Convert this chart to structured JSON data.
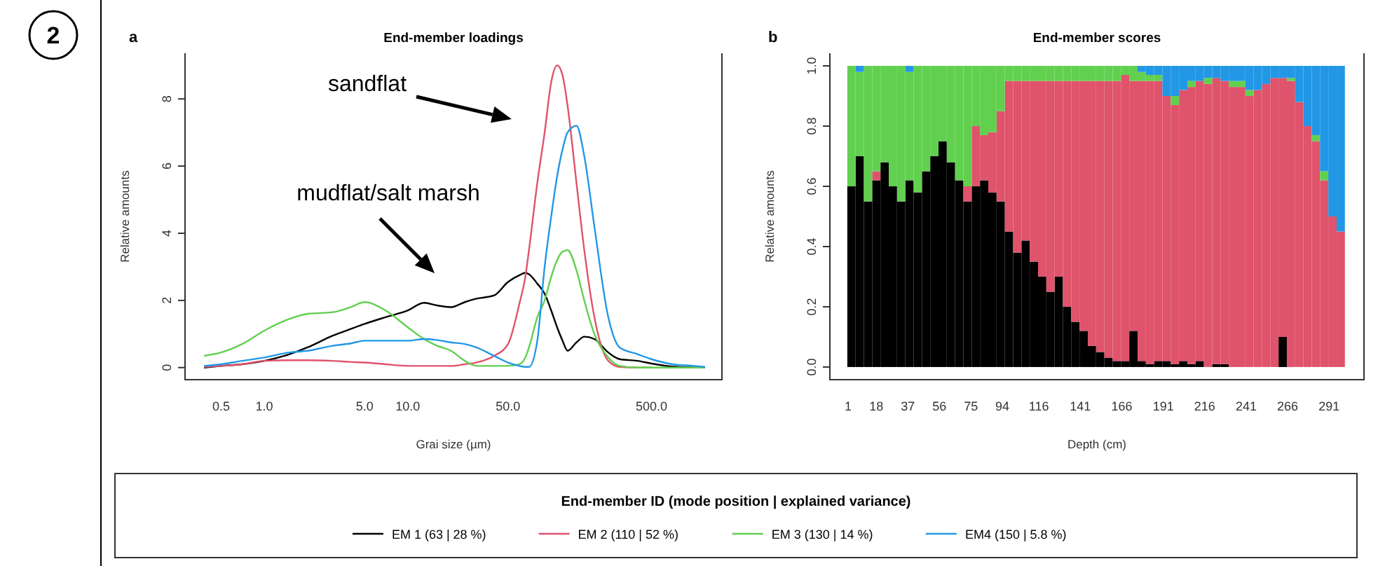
{
  "chart_data": [
    {
      "type": "line",
      "title": "End-member loadings",
      "xlabel": "Grai size (µm)",
      "ylabel": "Relative amounts",
      "log": "x",
      "legend": "bottom",
      "legend_title": "End-member ID (mode position | explained variance)",
      "x": [
        0.38,
        0.5,
        0.7,
        1,
        1.5,
        2,
        3,
        4,
        5,
        7,
        10,
        13,
        16,
        20,
        25,
        30,
        40,
        50,
        60,
        66,
        70,
        80,
        90,
        100,
        110,
        120,
        130,
        150,
        170,
        200,
        250,
        300,
        400,
        500,
        700,
        1000,
        1180
      ],
      "xlim": [
        0.28,
        1550
      ],
      "xticks": [
        0.5,
        {
          "value": 1,
          "label": "1.0"
        },
        {
          "value": 5,
          "label": "5.0"
        },
        {
          "value": 10,
          "label": "10.0"
        },
        {
          "value": 50,
          "label": "50.0"
        },
        {
          "value": 500,
          "label": "500.0"
        }
      ],
      "ylim": [
        -0.36,
        9.36
      ],
      "yticks": [
        0,
        2,
        4,
        6,
        8
      ],
      "series": [
        {
          "name": "EM 1 (63 | 28 %)",
          "color": "#000000",
          "values": [
            0,
            0.05,
            0.1,
            0.2,
            0.4,
            0.6,
            0.95,
            1.15,
            1.3,
            1.5,
            1.7,
            1.93,
            1.85,
            1.8,
            1.95,
            2.05,
            2.15,
            2.55,
            2.75,
            2.82,
            2.78,
            2.5,
            2.2,
            1.7,
            1.2,
            0.8,
            0.5,
            0.75,
            0.92,
            0.85,
            0.45,
            0.25,
            0.2,
            0.12,
            0.03,
            0,
            0
          ]
        },
        {
          "name": "EM 2 (110 | 52 %)",
          "color": "#df536b",
          "values": [
            0.02,
            0.05,
            0.1,
            0.2,
            0.22,
            0.22,
            0.2,
            0.17,
            0.15,
            0.1,
            0.05,
            0.05,
            0.05,
            0.05,
            0.1,
            0.15,
            0.35,
            0.7,
            1.9,
            2.7,
            3.5,
            5.5,
            7.0,
            8.5,
            9.0,
            8.7,
            7.8,
            5.5,
            3.5,
            1.5,
            0.2,
            0.02,
            0,
            0,
            null,
            null,
            null
          ]
        },
        {
          "name": "EM 3 (130 | 14 %)",
          "color": "#61d04f",
          "values": [
            0.35,
            0.45,
            0.7,
            1.1,
            1.45,
            1.6,
            1.65,
            1.8,
            1.95,
            1.7,
            1.2,
            0.85,
            0.65,
            0.5,
            0.2,
            0.05,
            0.05,
            0.05,
            0.1,
            0.3,
            0.6,
            1.5,
            2.0,
            2.7,
            3.2,
            3.45,
            3.5,
            2.9,
            2.0,
            1.0,
            0.3,
            0.05,
            0,
            0,
            0,
            0,
            0
          ]
        },
        {
          "name": "EM4 (150 | 5.8 %)",
          "color": "#2297e6",
          "values": [
            0.05,
            0.1,
            0.2,
            0.3,
            0.45,
            0.5,
            0.65,
            0.72,
            0.8,
            0.8,
            0.8,
            0.85,
            0.82,
            0.75,
            0.7,
            0.6,
            0.35,
            0.15,
            0.05,
            0.02,
            0.02,
            0.8,
            3.0,
            4.5,
            5.7,
            6.5,
            7.0,
            7.2,
            6.3,
            4.2,
            1.5,
            0.6,
            0.4,
            0.25,
            0.1,
            0.05,
            0.02
          ]
        }
      ],
      "annotations": [
        "2",
        "a",
        "sandflat",
        "mudflat/salt marsh"
      ]
    },
    {
      "type": "bar",
      "stacked": true,
      "title": "End-member scores",
      "xlabel": "Depth (cm)",
      "ylabel": "Relative amounts",
      "x": [
        3,
        8,
        13,
        18,
        23,
        28,
        33,
        38,
        43,
        48,
        53,
        58,
        63,
        68,
        73,
        78,
        83,
        88,
        93,
        98,
        103,
        108,
        113,
        118,
        123,
        128,
        133,
        138,
        143,
        148,
        153,
        158,
        163,
        168,
        173,
        178,
        183,
        188,
        193,
        198,
        203,
        208,
        213,
        218,
        223,
        228,
        233,
        238,
        243,
        248,
        253,
        258,
        263,
        268,
        273,
        278,
        283,
        288,
        293,
        298
      ],
      "xlim": [
        -10,
        312
      ],
      "xticks": [
        1,
        18,
        37,
        56,
        75,
        94,
        116,
        141,
        166,
        191,
        216,
        241,
        266,
        291
      ],
      "ylim": [
        -0.042,
        1.042
      ],
      "yticks": [
        {
          "value": 0,
          "label": "0.0"
        },
        {
          "value": 0.2,
          "label": "0.2"
        },
        {
          "value": 0.4,
          "label": "0.4"
        },
        {
          "value": 0.6,
          "label": "0.6"
        },
        {
          "value": 0.8,
          "label": "0.8"
        },
        {
          "value": 1,
          "label": "1.0"
        }
      ],
      "series": [
        {
          "color": "#000000",
          "values": [
            0.6,
            0.7,
            0.55,
            0.62,
            0.68,
            0.6,
            0.55,
            0.62,
            0.58,
            0.65,
            0.7,
            0.75,
            0.68,
            0.62,
            0.55,
            0.6,
            0.62,
            0.58,
            0.55,
            0.45,
            0.38,
            0.42,
            0.35,
            0.3,
            0.25,
            0.3,
            0.2,
            0.15,
            0.12,
            0.07,
            0.05,
            0.03,
            0.02,
            0.02,
            0.12,
            0.02,
            0.01,
            0.02,
            0.02,
            0.01,
            0.02,
            0.01,
            0.02,
            0,
            0.01,
            0.01,
            0,
            0,
            0,
            0,
            0,
            0,
            0.1,
            0,
            0,
            0,
            0,
            0,
            0,
            0
          ]
        },
        {
          "color": "#df536b",
          "values": [
            0,
            0,
            0,
            0.03,
            0,
            0,
            0,
            0,
            0,
            0,
            0,
            0,
            0,
            0,
            0.05,
            0.2,
            0.15,
            0.2,
            0.3,
            0.5,
            0.57,
            0.53,
            0.6,
            0.65,
            0.7,
            0.65,
            0.75,
            0.8,
            0.83,
            0.88,
            0.9,
            0.92,
            0.93,
            0.95,
            0.83,
            0.93,
            0.94,
            0.93,
            0.88,
            0.86,
            0.9,
            0.92,
            0.93,
            0.94,
            0.95,
            0.94,
            0.93,
            0.93,
            0.9,
            0.92,
            0.94,
            0.96,
            0.86,
            0.95,
            0.88,
            0.8,
            0.75,
            0.62,
            0.5,
            0.45
          ]
        },
        {
          "color": "#61d04f",
          "values": [
            0.4,
            0.28,
            0.45,
            0.35,
            0.32,
            0.4,
            0.45,
            0.36,
            0.42,
            0.35,
            0.3,
            0.25,
            0.32,
            0.38,
            0.4,
            0.2,
            0.23,
            0.22,
            0.15,
            0.05,
            0.05,
            0.05,
            0.05,
            0.05,
            0.05,
            0.05,
            0.05,
            0.05,
            0.05,
            0.05,
            0.05,
            0.05,
            0.05,
            0.03,
            0.05,
            0.03,
            0.02,
            0.02,
            0,
            0.03,
            0,
            0.02,
            0,
            0.02,
            0,
            0,
            0.02,
            0.02,
            0.02,
            0,
            0,
            0,
            0,
            0.01,
            0,
            0,
            0.02,
            0.03,
            0,
            0
          ]
        },
        {
          "color": "#2297e6",
          "values": [
            0,
            0.02,
            0,
            0,
            0,
            0,
            0,
            0.02,
            0,
            0,
            0,
            0,
            0,
            0,
            0,
            0,
            0,
            0,
            0,
            0,
            0,
            0,
            0,
            0,
            0,
            0,
            0,
            0,
            0,
            0,
            0,
            0,
            0,
            0,
            0,
            0.02,
            0.03,
            0.03,
            0.1,
            0.1,
            0.08,
            0.05,
            0.05,
            0.04,
            0.04,
            0.05,
            0.05,
            0.05,
            0.08,
            0.08,
            0.06,
            0.04,
            0.04,
            0.04,
            0.12,
            0.2,
            0.23,
            0.35,
            0.5,
            0.55
          ]
        }
      ],
      "annotations": [
        "b"
      ]
    }
  ]
}
